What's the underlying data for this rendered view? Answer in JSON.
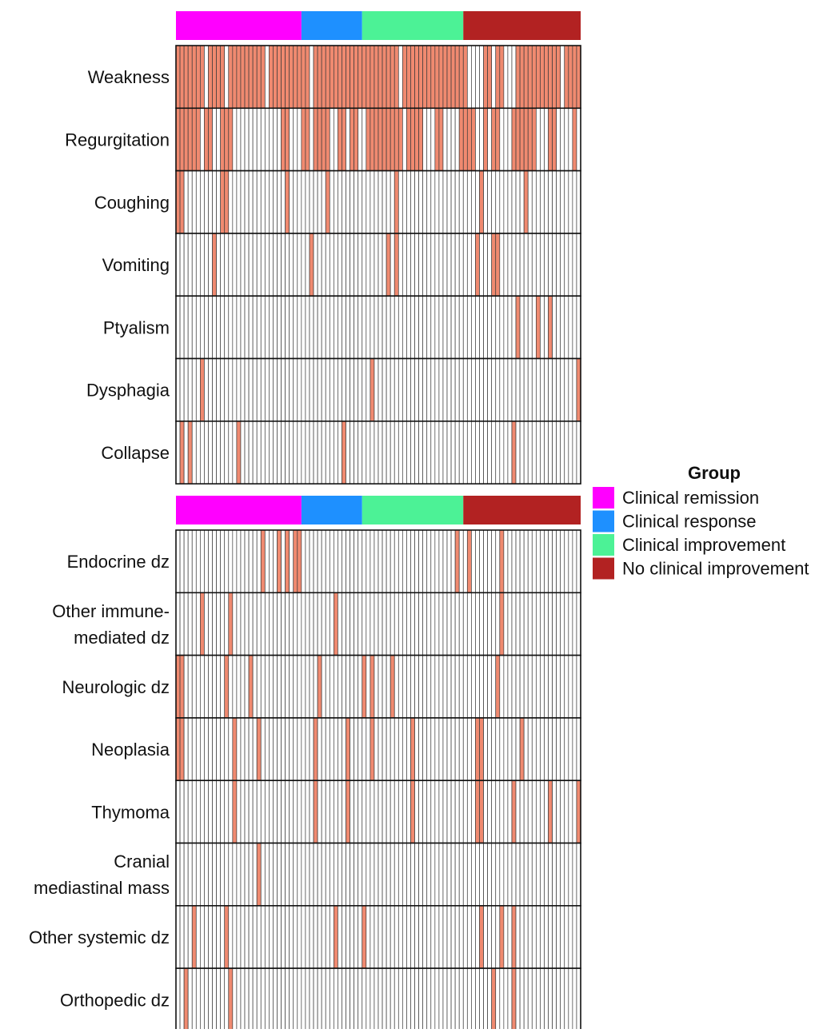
{
  "chart_data": {
    "type": "heatmap",
    "n_columns": 100,
    "groups": [
      {
        "name": "Clinical remission",
        "color": "#ff00ff",
        "n": 31
      },
      {
        "name": "Clinical response",
        "color": "#1e90ff",
        "n": 15
      },
      {
        "name": "Clinical improvement",
        "color": "#4cf296",
        "n": 25
      },
      {
        "name": "No clinical improvement",
        "color": "#b22222",
        "n": 29
      }
    ],
    "legend": {
      "title": "Group",
      "position": "right"
    },
    "present_color": "#f08a70",
    "absent_color": "#ffffff",
    "panels": [
      {
        "rows": [
          {
            "label": [
              "Weakness"
            ],
            "present": [
              0,
              1,
              2,
              3,
              4,
              5,
              6,
              8,
              9,
              10,
              11,
              13,
              14,
              15,
              16,
              17,
              18,
              19,
              20,
              21,
              23,
              24,
              25,
              26,
              27,
              28,
              29,
              30,
              31,
              32,
              34,
              35,
              36,
              37,
              38,
              39,
              40,
              41,
              42,
              43,
              44,
              45,
              46,
              47,
              48,
              49,
              50,
              51,
              52,
              53,
              54,
              56,
              57,
              58,
              59,
              60,
              61,
              62,
              63,
              64,
              65,
              66,
              67,
              68,
              69,
              70,
              71,
              76,
              77,
              79,
              80,
              84,
              85,
              86,
              87,
              88,
              89,
              90,
              91,
              92,
              93,
              94,
              96,
              97,
              98,
              99
            ]
          },
          {
            "label": [
              "Regurgitation"
            ],
            "present": [
              0,
              1,
              2,
              3,
              4,
              5,
              7,
              8,
              11,
              12,
              13,
              26,
              27,
              31,
              32,
              34,
              35,
              36,
              37,
              40,
              41,
              43,
              44,
              47,
              48,
              49,
              50,
              51,
              52,
              53,
              54,
              55,
              57,
              58,
              59,
              60,
              64,
              65,
              70,
              71,
              72,
              73,
              76,
              78,
              79,
              83,
              84,
              85,
              86,
              87,
              88,
              92,
              93,
              98
            ]
          },
          {
            "label": [
              "Coughing"
            ],
            "present": [
              0,
              1,
              11,
              12,
              27,
              37,
              54,
              75,
              86
            ]
          },
          {
            "label": [
              "Vomiting"
            ],
            "present": [
              9,
              33,
              52,
              54,
              74,
              78,
              79
            ]
          },
          {
            "label": [
              "Ptyalism"
            ],
            "present": [
              84,
              89,
              92
            ]
          },
          {
            "label": [
              "Dysphagia"
            ],
            "present": [
              6,
              48,
              99
            ]
          },
          {
            "label": [
              "Collapse"
            ],
            "present": [
              1,
              3,
              15,
              41,
              83
            ]
          }
        ]
      },
      {
        "rows": [
          {
            "label": [
              "Endocrine dz"
            ],
            "present": [
              21,
              25,
              27,
              29,
              30,
              69,
              72,
              80
            ]
          },
          {
            "label": [
              "Other immune-",
              "mediated dz"
            ],
            "present": [
              6,
              13,
              39,
              80
            ]
          },
          {
            "label": [
              "Neurologic dz"
            ],
            "present": [
              0,
              1,
              12,
              18,
              35,
              46,
              48,
              53,
              79
            ]
          },
          {
            "label": [
              "Neoplasia"
            ],
            "present": [
              0,
              1,
              14,
              20,
              34,
              42,
              48,
              58,
              74,
              75,
              85
            ]
          },
          {
            "label": [
              "Thymoma"
            ],
            "present": [
              14,
              34,
              42,
              58,
              74,
              75,
              83,
              92,
              99
            ]
          },
          {
            "label": [
              "Cranial",
              "mediastinal mass"
            ],
            "present": [
              20
            ]
          },
          {
            "label": [
              "Other systemic dz"
            ],
            "present": [
              4,
              12,
              39,
              46,
              75,
              80,
              83
            ]
          },
          {
            "label": [
              "Orthopedic dz"
            ],
            "present": [
              2,
              13,
              78,
              83
            ]
          }
        ]
      }
    ]
  }
}
